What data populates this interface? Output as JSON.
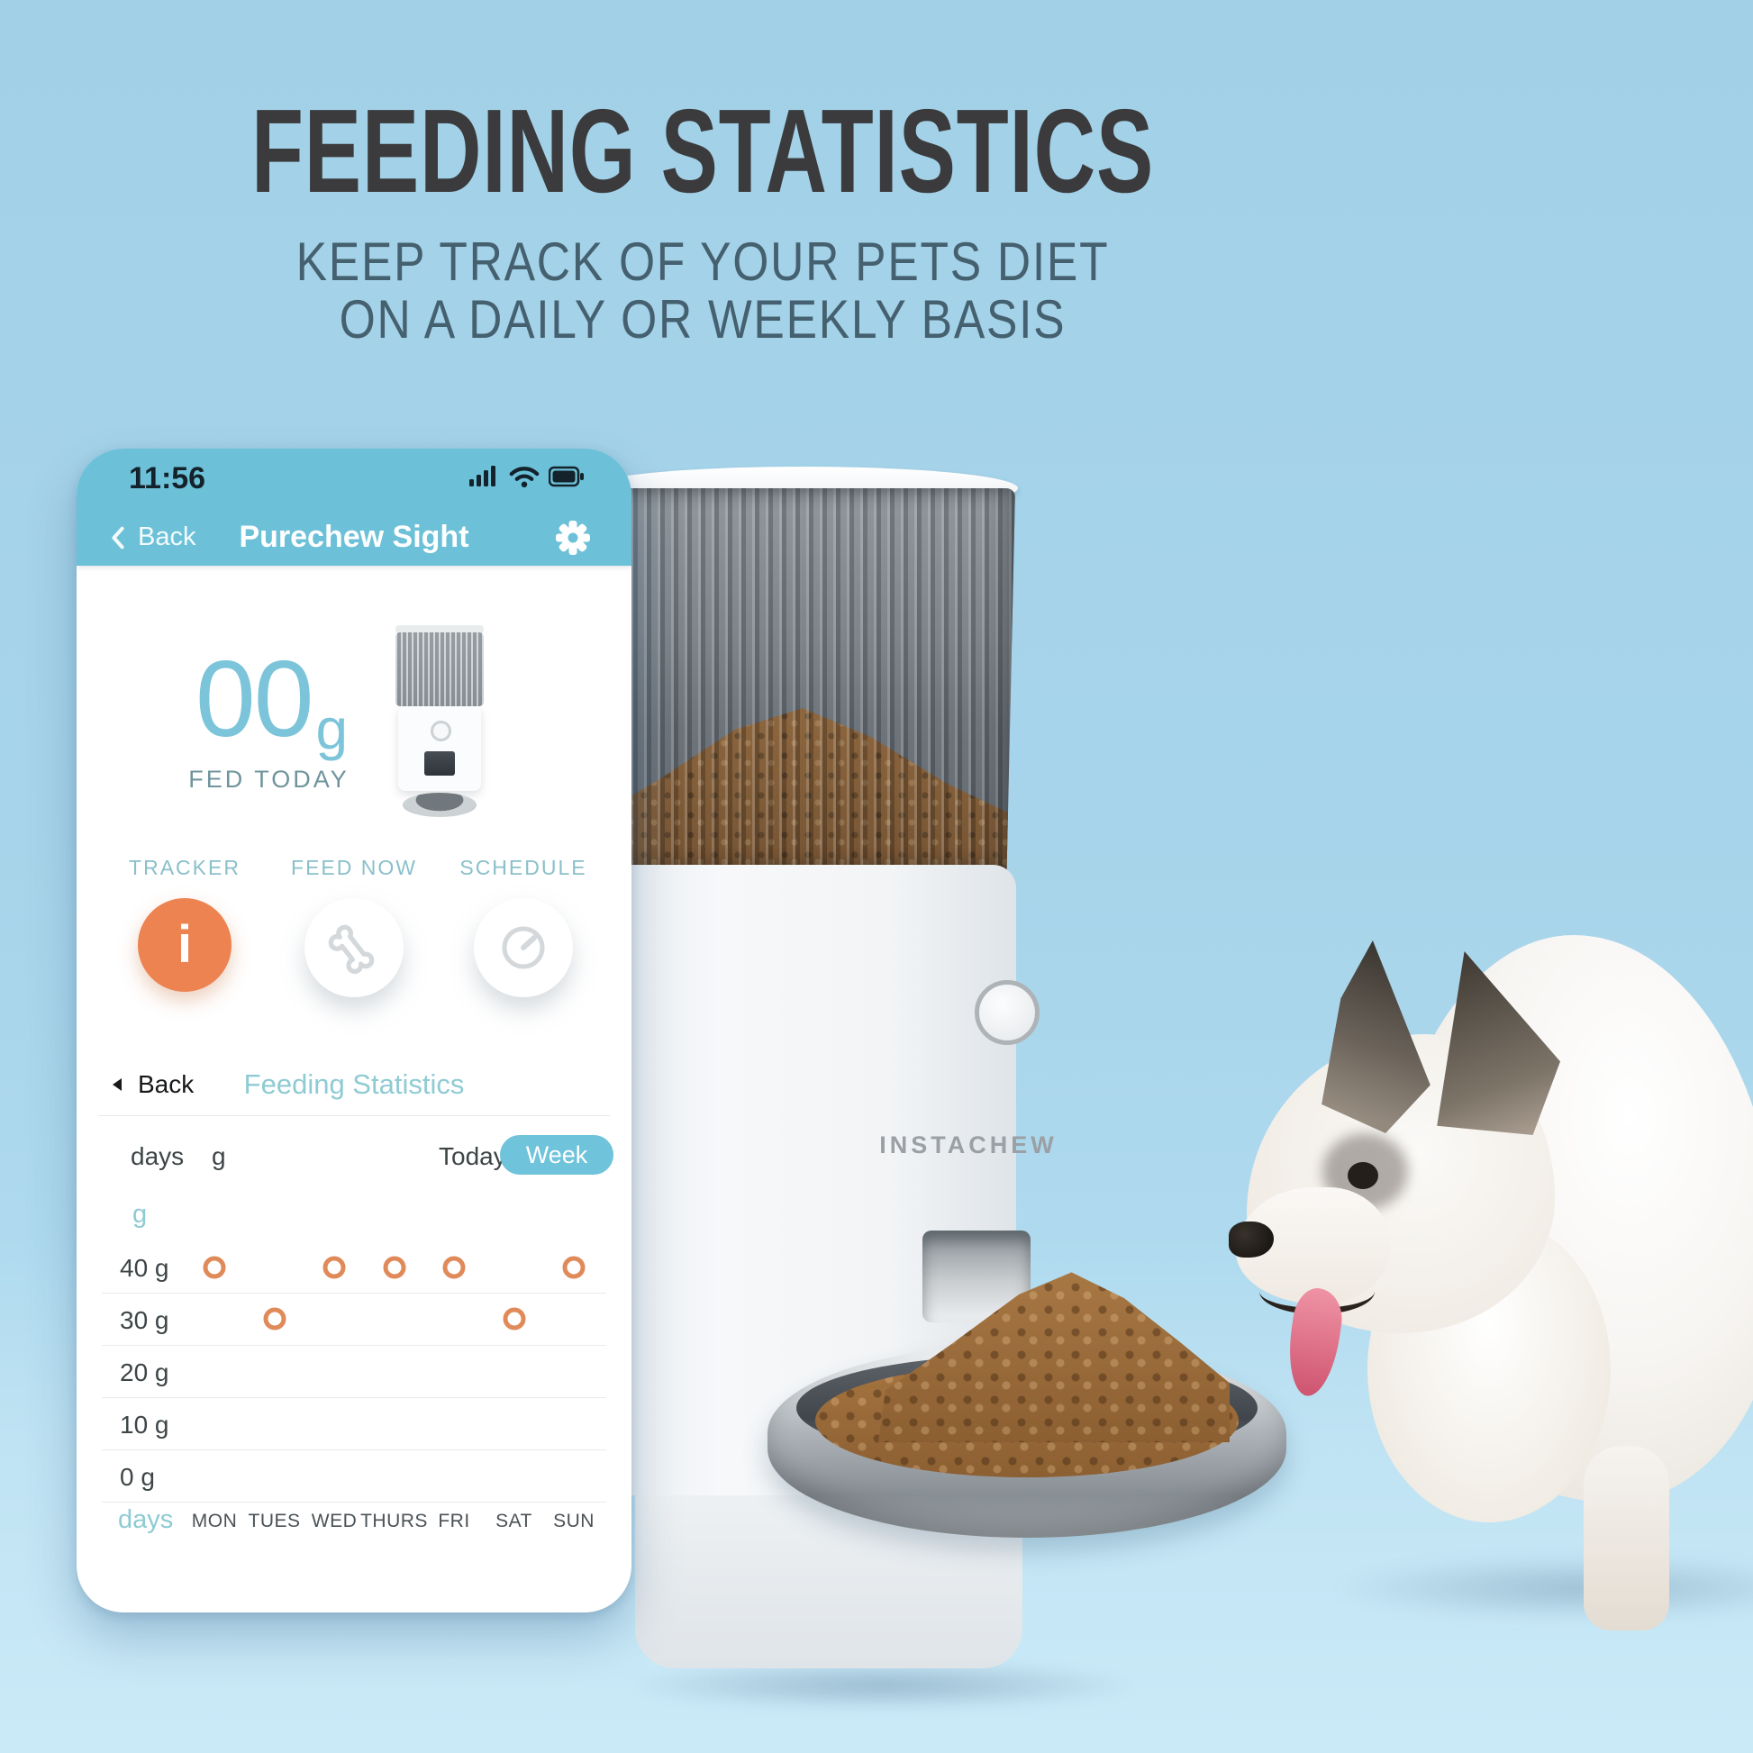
{
  "header": {
    "title": "FEEDING STATISTICS",
    "subtitle_line1": "KEEP TRACK OF YOUR PETS DIET",
    "subtitle_line2": "ON A DAILY OR WEEKLY BASIS"
  },
  "phone": {
    "status_bar": {
      "time": "11:56",
      "icons": [
        "cellular-signal-icon",
        "wifi-icon",
        "battery-icon"
      ]
    },
    "nav": {
      "back_label": "Back",
      "title": "Purechew Sight"
    },
    "fed_today": {
      "amount": "00",
      "unit": "g",
      "label": "FED TODAY"
    },
    "actions": [
      {
        "label": "TRACKER",
        "icon": "info-icon",
        "glyph": "i"
      },
      {
        "label": "FEED NOW",
        "icon": "bone-icon"
      },
      {
        "label": "SCHEDULE",
        "icon": "timer-icon"
      }
    ],
    "stats_header": {
      "back_label": "Back",
      "title": "Feeding Statistics"
    },
    "controls": {
      "rows_label": "days",
      "unit_label": "g",
      "today_label": "Today",
      "week_label": "Week"
    }
  },
  "chart_data": {
    "type": "scatter",
    "title": "Feeding Statistics",
    "x": [
      "MON",
      "TUES",
      "WED",
      "THURS",
      "FRI",
      "SAT",
      "SUN"
    ],
    "values": [
      40,
      30,
      40,
      40,
      40,
      30,
      40
    ],
    "y_ticks": [
      "40 g",
      "30 g",
      "20 g",
      "10 g",
      "0 g"
    ],
    "y_range": [
      0,
      40
    ],
    "xlabel": "days",
    "ylabel": "g",
    "grid": "horizontal",
    "legend": "none",
    "point_style": "open-circle",
    "point_color": "#e08a5a"
  },
  "product": {
    "brand": "INSTACHEW"
  },
  "colors": {
    "background_top": "#a2d1e7",
    "background_floor": "#cbeaf8",
    "headline": "#3b3b3d",
    "subtitle": "#45606f",
    "app_header_teal": "#6cc1d8",
    "app_teal_text": "#8ecbd3",
    "week_pill": "#6fc3da",
    "accent_orange": "#ec8350",
    "chart_point": "#e08a5a",
    "text_dark": "#3e4547",
    "fed_amount": "#7cc4da"
  }
}
